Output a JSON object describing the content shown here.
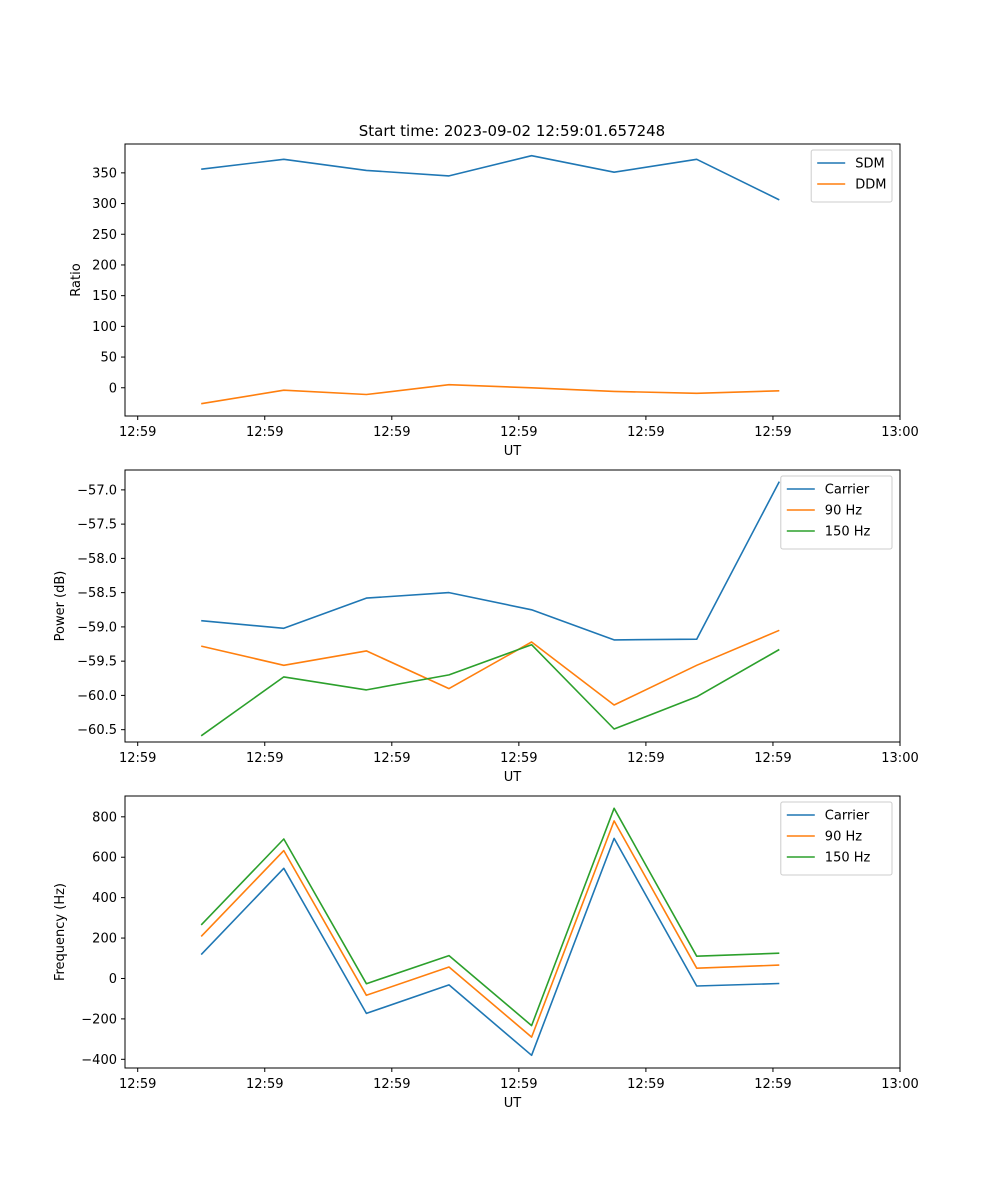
{
  "figure_title": "Start time: 2023-09-02 12:59:01.657248",
  "chart_data": [
    {
      "type": "line",
      "title": "Start time: 2023-09-02 12:59:01.657248",
      "xlabel": "UT",
      "ylabel": "Ratio",
      "x": [
        0.5,
        1.15,
        1.8,
        2.45,
        3.1,
        3.75,
        4.4,
        5.05
      ],
      "xlim": [
        -0.1,
        6.0
      ],
      "xticks": [
        0,
        1,
        2,
        3,
        4,
        5,
        6
      ],
      "xticklabels": [
        "12:59",
        "12:59",
        "12:59",
        "12:59",
        "12:59",
        "12:59",
        "13:00"
      ],
      "ylim": [
        -46,
        397
      ],
      "yticks": [
        0,
        50,
        100,
        150,
        200,
        250,
        300,
        350
      ],
      "yticklabels": [
        "0",
        "50",
        "100",
        "150",
        "200",
        "250",
        "300",
        "350"
      ],
      "legend": "upper right",
      "series": [
        {
          "name": "SDM",
          "color": "#1f77b4",
          "values": [
            356,
            372,
            354,
            345,
            378,
            351,
            372,
            306
          ]
        },
        {
          "name": "DDM",
          "color": "#ff7f0e",
          "values": [
            -26,
            -4,
            -11,
            5,
            0,
            -6,
            -9,
            -5
          ]
        }
      ]
    },
    {
      "type": "line",
      "title": "",
      "xlabel": "UT",
      "ylabel": "Power (dB)",
      "x": [
        0.5,
        1.15,
        1.8,
        2.45,
        3.1,
        3.75,
        4.4,
        5.05
      ],
      "xlim": [
        -0.1,
        6.0
      ],
      "xticks": [
        0,
        1,
        2,
        3,
        4,
        5,
        6
      ],
      "xticklabels": [
        "12:59",
        "12:59",
        "12:59",
        "12:59",
        "12:59",
        "12:59",
        "13:00"
      ],
      "ylim": [
        -60.68,
        -56.71
      ],
      "yticks": [
        -60.5,
        -60.0,
        -59.5,
        -59.0,
        -58.5,
        -58.0,
        -57.5,
        -57.0
      ],
      "yticklabels": [
        "−60.5",
        "−60.0",
        "−59.5",
        "−59.0",
        "−58.5",
        "−58.0",
        "−57.5",
        "−57.0"
      ],
      "legend": "upper right",
      "series": [
        {
          "name": "Carrier",
          "color": "#1f77b4",
          "values": [
            -58.91,
            -59.02,
            -58.58,
            -58.5,
            -58.75,
            -59.19,
            -59.18,
            -56.88
          ]
        },
        {
          "name": "90 Hz",
          "color": "#ff7f0e",
          "values": [
            -59.28,
            -59.56,
            -59.35,
            -59.9,
            -59.22,
            -60.14,
            -59.56,
            -59.05
          ]
        },
        {
          "name": "150 Hz",
          "color": "#2ca02c",
          "values": [
            -60.59,
            -59.73,
            -59.92,
            -59.7,
            -59.26,
            -60.49,
            -60.02,
            -59.33
          ]
        }
      ]
    },
    {
      "type": "line",
      "title": "",
      "xlabel": "UT",
      "ylabel": "Frequency (Hz)",
      "x": [
        0.5,
        1.15,
        1.8,
        2.45,
        3.1,
        3.75,
        4.4,
        5.05
      ],
      "xlim": [
        -0.1,
        6.0
      ],
      "xticks": [
        0,
        1,
        2,
        3,
        4,
        5,
        6
      ],
      "xticklabels": [
        "12:59",
        "12:59",
        "12:59",
        "12:59",
        "12:59",
        "12:59",
        "13:00"
      ],
      "ylim": [
        -443,
        903
      ],
      "yticks": [
        -400,
        -200,
        0,
        200,
        400,
        600,
        800
      ],
      "yticklabels": [
        "−400",
        "−200",
        "0",
        "200",
        "400",
        "600",
        "800"
      ],
      "legend": "upper right",
      "series": [
        {
          "name": "Carrier",
          "color": "#1f77b4",
          "values": [
            118,
            545,
            -173,
            -32,
            -380,
            693,
            -37,
            -25
          ]
        },
        {
          "name": "90 Hz",
          "color": "#ff7f0e",
          "values": [
            208,
            633,
            -83,
            57,
            -290,
            780,
            51,
            66
          ]
        },
        {
          "name": "150 Hz",
          "color": "#2ca02c",
          "values": [
            265,
            690,
            -26,
            113,
            -233,
            842,
            110,
            125
          ]
        }
      ]
    }
  ]
}
